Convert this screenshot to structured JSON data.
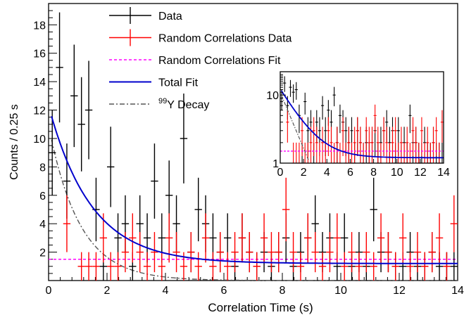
{
  "chart_data": {
    "type": "scatter",
    "xlabel": "Correlation Time (s)",
    "ylabel": "Counts / 0.25 s",
    "xlim": [
      0,
      14
    ],
    "ylim": [
      0,
      19.5
    ],
    "xticks": [
      "0",
      "2",
      "4",
      "6",
      "8",
      "10",
      "12",
      "14"
    ],
    "yticks": [
      "2",
      "4",
      "6",
      "8",
      "10",
      "12",
      "14",
      "16",
      "18"
    ],
    "legend": [
      {
        "label": "Data",
        "color": "#000000",
        "marker": "errorbar"
      },
      {
        "label": "Random Correlations Data",
        "color": "#ff0000",
        "marker": "errorbar"
      },
      {
        "label": "Random Correlations Fit",
        "color": "#ff00ff",
        "marker": "dashed-line"
      },
      {
        "label": "Total Fit",
        "color": "#0000cc",
        "marker": "line"
      },
      {
        "label_sup": "99",
        "label": "Y Decay",
        "color": "#555555",
        "marker": "dashdot-line"
      }
    ],
    "legend_placement": "top-left",
    "bin_width": 0.25,
    "data_black": [
      [
        0.125,
        9
      ],
      [
        0.375,
        15
      ],
      [
        0.625,
        7
      ],
      [
        0.875,
        13
      ],
      [
        1.125,
        11
      ],
      [
        1.375,
        12
      ],
      [
        1.625,
        5
      ],
      [
        1.875,
        1
      ],
      [
        2.125,
        8
      ],
      [
        2.375,
        3
      ],
      [
        2.625,
        4
      ],
      [
        2.875,
        1
      ],
      [
        3.125,
        4
      ],
      [
        3.375,
        3
      ],
      [
        3.625,
        7
      ],
      [
        3.875,
        3
      ],
      [
        4.125,
        6
      ],
      [
        4.375,
        4
      ],
      [
        4.625,
        10
      ],
      [
        4.875,
        2
      ],
      [
        5.125,
        5
      ],
      [
        5.375,
        4
      ],
      [
        5.625,
        3
      ],
      [
        5.875,
        2
      ],
      [
        6.125,
        3
      ],
      [
        6.375,
        1
      ],
      [
        6.625,
        3
      ],
      [
        6.875,
        2
      ],
      [
        7.125,
        1
      ],
      [
        7.375,
        2
      ],
      [
        7.625,
        1
      ],
      [
        7.875,
        2
      ],
      [
        8.125,
        3
      ],
      [
        8.375,
        1
      ],
      [
        8.625,
        2
      ],
      [
        8.875,
        3
      ],
      [
        9.125,
        4
      ],
      [
        9.375,
        2
      ],
      [
        9.625,
        3
      ],
      [
        9.875,
        1
      ],
      [
        10.125,
        3
      ],
      [
        10.375,
        1
      ],
      [
        10.625,
        2
      ],
      [
        10.875,
        1
      ],
      [
        11.125,
        5
      ],
      [
        11.375,
        2
      ],
      [
        11.625,
        2
      ],
      [
        11.875,
        1
      ],
      [
        12.125,
        1
      ],
      [
        12.375,
        2
      ],
      [
        12.625,
        1
      ],
      [
        12.875,
        1
      ],
      [
        13.125,
        2
      ],
      [
        13.375,
        1
      ],
      [
        13.625,
        1
      ],
      [
        13.875,
        1
      ]
    ],
    "data_red": [
      [
        0.625,
        4
      ],
      [
        1.125,
        1
      ],
      [
        1.375,
        1
      ],
      [
        1.625,
        1
      ],
      [
        1.875,
        3
      ],
      [
        2.125,
        1
      ],
      [
        2.375,
        1
      ],
      [
        2.625,
        2
      ],
      [
        2.875,
        3
      ],
      [
        3.125,
        2
      ],
      [
        3.375,
        1
      ],
      [
        3.625,
        2
      ],
      [
        3.875,
        1
      ],
      [
        4.125,
        3
      ],
      [
        4.375,
        2
      ],
      [
        4.625,
        1
      ],
      [
        4.875,
        2
      ],
      [
        5.125,
        1
      ],
      [
        5.375,
        3
      ],
      [
        5.625,
        1
      ],
      [
        5.875,
        2
      ],
      [
        6.125,
        1
      ],
      [
        6.375,
        2
      ],
      [
        6.625,
        3
      ],
      [
        6.875,
        2
      ],
      [
        7.125,
        1
      ],
      [
        7.375,
        3
      ],
      [
        7.625,
        2
      ],
      [
        7.875,
        2
      ],
      [
        8.125,
        5
      ],
      [
        8.375,
        2
      ],
      [
        8.625,
        1
      ],
      [
        8.875,
        3
      ],
      [
        9.125,
        2
      ],
      [
        9.375,
        1
      ],
      [
        9.625,
        2
      ],
      [
        9.875,
        3
      ],
      [
        10.125,
        1
      ],
      [
        10.375,
        2
      ],
      [
        10.625,
        1
      ],
      [
        10.875,
        2
      ],
      [
        11.125,
        1
      ],
      [
        11.375,
        3
      ],
      [
        11.625,
        2
      ],
      [
        11.875,
        1
      ],
      [
        12.125,
        3
      ],
      [
        12.375,
        1
      ],
      [
        12.625,
        2
      ],
      [
        12.875,
        1
      ],
      [
        13.125,
        2
      ],
      [
        13.375,
        3
      ],
      [
        13.625,
        1
      ],
      [
        13.875,
        4
      ]
    ],
    "random_fit_level": 1.5,
    "total_fit": {
      "amplitude": 11.1,
      "tau_s": 1.46,
      "offset": 1.2
    },
    "y99_decay": {
      "amplitude": 10.9,
      "tau_s": 1.06
    },
    "inset": {
      "xlim": [
        0,
        14
      ],
      "ylim_log": [
        1,
        22
      ],
      "log_y": true,
      "xticks": [
        "0",
        "2",
        "4",
        "6",
        "8",
        "10",
        "12",
        "14"
      ],
      "yticks": [
        "1",
        "10"
      ]
    }
  }
}
